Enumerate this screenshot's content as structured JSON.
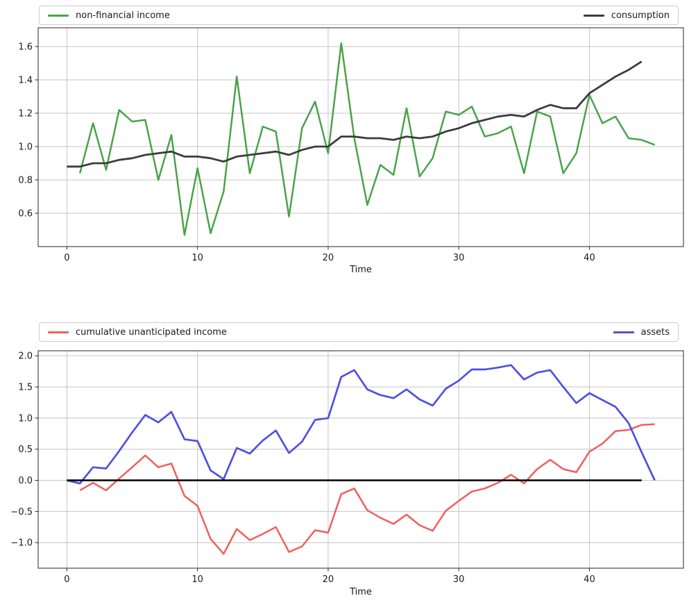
{
  "chart_data": [
    {
      "type": "line",
      "title": "",
      "xlabel": "Time",
      "ylabel": "",
      "grid": true,
      "legend_position": "expanded bar above plot, one entry left, one entry right",
      "xlim": [
        -2.2,
        47.2
      ],
      "ylim": [
        0.4,
        1.7125
      ],
      "xticks": [
        0,
        10,
        20,
        30,
        40
      ],
      "xtick_labels": [
        "0",
        "10",
        "20",
        "30",
        "40"
      ],
      "yticks": [
        0.6,
        0.8,
        1.0,
        1.2,
        1.4,
        1.6
      ],
      "ytick_labels": [
        "0.6",
        "0.8",
        "1.0",
        "1.2",
        "1.4",
        "1.6"
      ],
      "series": [
        {
          "name": "non-financial income",
          "color": "#49a349",
          "width": 2.5,
          "x": [
            1,
            2,
            3,
            4,
            5,
            6,
            7,
            8,
            9,
            10,
            11,
            12,
            13,
            14,
            15,
            16,
            17,
            18,
            19,
            20,
            21,
            22,
            23,
            24,
            25,
            26,
            27,
            28,
            29,
            30,
            31,
            32,
            33,
            34,
            35,
            36,
            37,
            38,
            39,
            40,
            41,
            42,
            43,
            44,
            45
          ],
          "y": [
            0.84,
            1.14,
            0.86,
            1.22,
            1.15,
            1.16,
            0.8,
            1.07,
            0.47,
            0.87,
            0.48,
            0.73,
            1.42,
            0.84,
            1.12,
            1.09,
            0.58,
            1.11,
            1.27,
            0.96,
            1.62,
            1.05,
            0.65,
            0.89,
            0.83,
            1.23,
            0.82,
            0.93,
            1.21,
            1.19,
            1.24,
            1.06,
            1.08,
            1.12,
            0.84,
            1.21,
            1.18,
            0.84,
            0.96,
            1.31,
            1.14,
            1.18,
            1.05,
            1.04,
            1.01
          ]
        },
        {
          "name": "consumption",
          "color": "#3c3c3c",
          "width": 2.8,
          "x": [
            0,
            1,
            2,
            3,
            4,
            5,
            6,
            7,
            8,
            9,
            10,
            11,
            12,
            13,
            14,
            15,
            16,
            17,
            18,
            19,
            20,
            21,
            22,
            23,
            24,
            25,
            26,
            27,
            28,
            29,
            30,
            31,
            32,
            33,
            34,
            35,
            36,
            37,
            38,
            39,
            40,
            41,
            42,
            43,
            44
          ],
          "y": [
            0.88,
            0.88,
            0.9,
            0.9,
            0.92,
            0.93,
            0.95,
            0.96,
            0.97,
            0.94,
            0.94,
            0.93,
            0.91,
            0.94,
            0.95,
            0.96,
            0.97,
            0.95,
            0.98,
            1.0,
            1.0,
            1.06,
            1.06,
            1.05,
            1.05,
            1.04,
            1.06,
            1.05,
            1.06,
            1.09,
            1.11,
            1.14,
            1.16,
            1.18,
            1.19,
            1.18,
            1.22,
            1.25,
            1.23,
            1.23,
            1.32,
            1.37,
            1.42,
            1.46,
            1.51
          ]
        }
      ]
    },
    {
      "type": "line",
      "title": "",
      "xlabel": "Time",
      "ylabel": "",
      "grid": true,
      "legend_position": "expanded bar above plot, one entry left, one entry right",
      "xlim": [
        -2.2,
        47.2
      ],
      "ylim": [
        -1.41,
        2.08
      ],
      "xticks": [
        0,
        10,
        20,
        30,
        40
      ],
      "xtick_labels": [
        "0",
        "10",
        "20",
        "30",
        "40"
      ],
      "yticks": [
        2.0,
        1.5,
        1.0,
        0.5,
        0.0,
        -0.5,
        -1.0
      ],
      "ytick_labels": [
        "2.0",
        "1.5",
        "1.0",
        "0.5",
        "0.0",
        "−0.5",
        "−1.0"
      ],
      "series": [
        {
          "name": "cumulative unanticipated income",
          "color": "#f15e5c",
          "width": 2.5,
          "x": [
            1,
            2,
            3,
            4,
            5,
            6,
            7,
            8,
            9,
            10,
            11,
            12,
            13,
            14,
            15,
            16,
            17,
            18,
            19,
            20,
            21,
            22,
            23,
            24,
            25,
            26,
            27,
            28,
            29,
            30,
            31,
            32,
            33,
            34,
            35,
            36,
            37,
            38,
            39,
            40,
            41,
            42,
            43,
            44,
            45
          ],
          "y": [
            -0.16,
            -0.04,
            -0.16,
            0.03,
            0.21,
            0.4,
            0.21,
            0.27,
            -0.25,
            -0.41,
            -0.94,
            -1.18,
            -0.78,
            -0.96,
            -0.86,
            -0.75,
            -1.15,
            -1.06,
            -0.8,
            -0.84,
            -0.22,
            -0.13,
            -0.48,
            -0.6,
            -0.7,
            -0.55,
            -0.72,
            -0.81,
            -0.49,
            -0.33,
            -0.18,
            -0.13,
            -0.04,
            0.09,
            -0.05,
            0.18,
            0.33,
            0.18,
            0.13,
            0.46,
            0.59,
            0.79,
            0.81,
            0.89,
            0.9
          ]
        },
        {
          "name": "assets",
          "color": "#4f50e0",
          "width": 2.7,
          "x": [
            0,
            1,
            2,
            3,
            4,
            5,
            6,
            7,
            8,
            9,
            10,
            11,
            12,
            13,
            14,
            15,
            16,
            17,
            18,
            19,
            20,
            21,
            22,
            23,
            24,
            25,
            26,
            27,
            28,
            29,
            30,
            31,
            32,
            33,
            34,
            35,
            36,
            37,
            38,
            39,
            40,
            41,
            42,
            43,
            44,
            45
          ],
          "y": [
            0.0,
            -0.05,
            0.21,
            0.19,
            0.47,
            0.77,
            1.05,
            0.93,
            1.1,
            0.66,
            0.63,
            0.16,
            0.02,
            0.52,
            0.43,
            0.64,
            0.8,
            0.44,
            0.62,
            0.97,
            1.0,
            1.66,
            1.77,
            1.46,
            1.37,
            1.32,
            1.46,
            1.3,
            1.2,
            1.47,
            1.6,
            1.78,
            1.78,
            1.81,
            1.85,
            1.62,
            1.73,
            1.77,
            1.5,
            1.24,
            1.4,
            1.29,
            1.18,
            0.92,
            0.45,
            0.0
          ]
        },
        {
          "name": "zero-baseline",
          "color": "#000000",
          "width": 2.5,
          "x": [
            0,
            44
          ],
          "y": [
            0,
            0
          ]
        }
      ]
    }
  ],
  "style": {
    "grid_color": "#c4c4c4",
    "spine_color": "#262626",
    "tick_label_color": "#1a1a1a",
    "background": "#ffffff"
  }
}
